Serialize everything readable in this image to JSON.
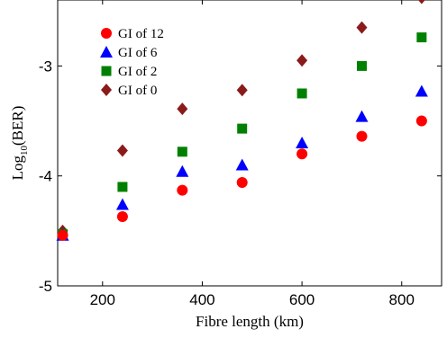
{
  "chart_data": {
    "type": "scatter",
    "xlabel": "Fibre length (km)",
    "ylabel_base": "Log",
    "ylabel_sub": "10",
    "ylabel_rest": "(BER)",
    "xlim": [
      110,
      880
    ],
    "ylim": [
      -5,
      -2.4
    ],
    "xticks": [
      200,
      400,
      600,
      800
    ],
    "xtick_labels": [
      "200",
      "400",
      "600",
      "800"
    ],
    "yticks": [
      -5,
      -4,
      -3
    ],
    "ytick_labels": [
      "-5",
      "-4",
      "-3"
    ],
    "grid": false,
    "legend_position": "top-left",
    "series": [
      {
        "name": "GI of 12",
        "marker": "circle",
        "color": "#ff0000",
        "x": [
          120,
          240,
          360,
          480,
          600,
          720,
          840
        ],
        "y": [
          -4.54,
          -4.37,
          -4.13,
          -4.06,
          -3.8,
          -3.64,
          -3.5
        ]
      },
      {
        "name": "GI of 6",
        "marker": "triangle",
        "color": "#0000ff",
        "x": [
          120,
          240,
          360,
          480,
          600,
          720,
          840
        ],
        "y": [
          -4.54,
          -4.26,
          -3.96,
          -3.9,
          -3.7,
          -3.46,
          -3.23
        ]
      },
      {
        "name": "GI of 2",
        "marker": "square",
        "color": "#008000",
        "x": [
          120,
          240,
          360,
          480,
          600,
          720,
          840
        ],
        "y": [
          -4.53,
          -4.1,
          -3.78,
          -3.57,
          -3.25,
          -3.0,
          -2.74
        ]
      },
      {
        "name": "GI of 0",
        "marker": "diamond",
        "color": "#8b1a1a",
        "x": [
          120,
          240,
          360,
          480,
          600,
          720,
          840
        ],
        "y": [
          -4.5,
          -3.77,
          -3.39,
          -3.22,
          -2.95,
          -2.65,
          -2.38
        ]
      }
    ]
  }
}
